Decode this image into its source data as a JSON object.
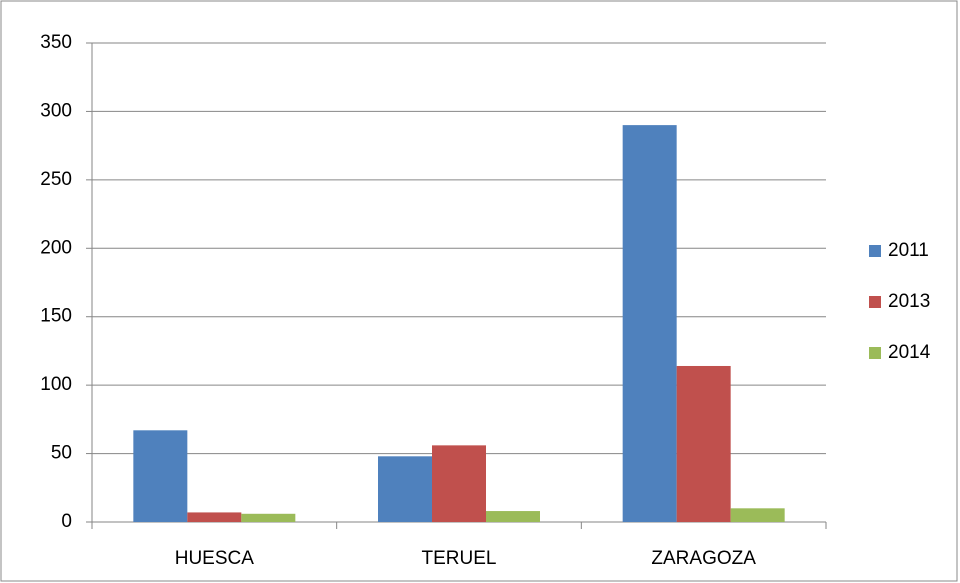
{
  "chart_data": {
    "type": "bar",
    "categories": [
      "HUESCA",
      "TERUEL",
      "ZARAGOZA"
    ],
    "series": [
      {
        "name": "2011",
        "color": "#4f81bd",
        "values": [
          67,
          48,
          290
        ]
      },
      {
        "name": "2013",
        "color": "#c0504d",
        "values": [
          7,
          56,
          114
        ]
      },
      {
        "name": "2014",
        "color": "#9bbb59",
        "values": [
          6,
          8,
          10
        ]
      }
    ],
    "ylim": [
      0,
      350
    ],
    "yticks": [
      0,
      50,
      100,
      150,
      200,
      250,
      300,
      350
    ],
    "grid": true,
    "legend": "right"
  }
}
